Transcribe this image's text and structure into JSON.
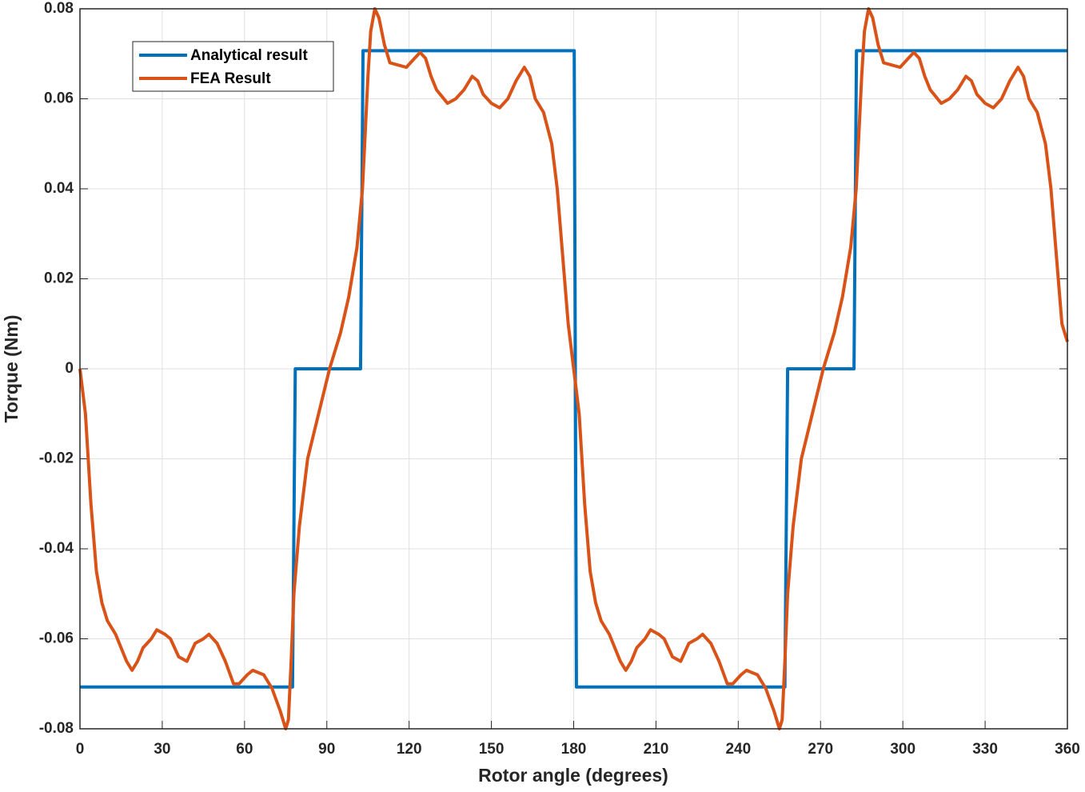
{
  "chart_data": {
    "type": "line",
    "xlabel": "Rotor angle (degrees)",
    "ylabel": "Torque (Nm)",
    "xlim": [
      0,
      360
    ],
    "xticks": [
      0,
      30,
      60,
      90,
      120,
      150,
      180,
      210,
      240,
      270,
      300,
      330,
      360
    ],
    "ylim": [
      -0.08,
      0.08
    ],
    "yticks": [
      -0.08,
      -0.06,
      -0.04,
      -0.02,
      0,
      0.02,
      0.04,
      0.06,
      0.08
    ],
    "grid": true,
    "legend": "upper-left",
    "series": [
      {
        "name": "Analytical result",
        "color": "#0072BD",
        "x": [
          0,
          77.5,
          78.5,
          102.3,
          103.2,
          180.2,
          181,
          257,
          258,
          282.2,
          283.1,
          360
        ],
        "values": [
          -0.0707,
          -0.0707,
          0,
          0,
          0.0707,
          0.0707,
          -0.0707,
          -0.0707,
          0,
          0,
          0.0707,
          0.0707
        ]
      },
      {
        "name": "FEA Result",
        "color": "#D95319",
        "x": [
          0,
          2,
          4,
          6,
          8,
          10,
          13,
          15,
          17,
          19,
          21,
          23,
          26,
          28,
          31,
          33,
          36,
          39,
          42,
          45,
          47,
          50,
          53,
          56,
          58,
          61,
          63,
          67,
          70,
          73,
          75,
          76,
          77,
          78,
          80,
          83,
          87,
          91,
          95,
          98,
          101,
          103,
          105,
          106,
          107.5,
          109,
          111,
          113,
          116,
          119,
          122,
          124,
          126,
          128,
          130,
          132,
          134,
          137,
          140,
          143,
          145,
          147,
          150,
          153,
          156,
          159,
          162,
          164,
          166,
          169,
          172,
          174,
          176,
          178,
          180,
          182,
          184,
          186,
          188,
          190,
          193,
          195,
          197,
          199,
          201,
          203,
          206,
          208,
          211,
          213,
          216,
          219,
          222,
          225,
          227,
          230,
          233,
          236,
          238,
          241,
          243,
          247,
          250,
          253,
          255,
          256,
          257,
          258,
          260,
          263,
          267,
          271,
          275,
          278,
          281,
          283,
          285,
          286,
          287.5,
          289,
          291,
          293,
          296,
          299,
          302,
          304,
          306,
          308,
          310,
          312,
          314,
          317,
          320,
          323,
          325,
          327,
          330,
          333,
          336,
          339,
          342,
          344,
          346,
          349,
          352,
          354,
          356,
          358,
          360
        ],
        "values": [
          0,
          -0.01,
          -0.03,
          -0.045,
          -0.052,
          -0.056,
          -0.059,
          -0.062,
          -0.065,
          -0.067,
          -0.065,
          -0.062,
          -0.06,
          -0.058,
          -0.059,
          -0.06,
          -0.064,
          -0.065,
          -0.061,
          -0.06,
          -0.059,
          -0.061,
          -0.065,
          -0.07,
          -0.07,
          -0.068,
          -0.067,
          -0.068,
          -0.071,
          -0.076,
          -0.08,
          -0.078,
          -0.065,
          -0.05,
          -0.035,
          -0.02,
          -0.01,
          0,
          0.008,
          0.016,
          0.027,
          0.04,
          0.065,
          0.075,
          0.08,
          0.078,
          0.072,
          0.068,
          0.0675,
          0.067,
          0.069,
          0.0703,
          0.069,
          0.065,
          0.062,
          0.0605,
          0.059,
          0.06,
          0.062,
          0.065,
          0.064,
          0.061,
          0.059,
          0.058,
          0.06,
          0.064,
          0.067,
          0.065,
          0.06,
          0.057,
          0.05,
          0.04,
          0.025,
          0.01,
          0,
          -0.01,
          -0.03,
          -0.045,
          -0.052,
          -0.056,
          -0.059,
          -0.062,
          -0.065,
          -0.067,
          -0.065,
          -0.062,
          -0.06,
          -0.058,
          -0.059,
          -0.06,
          -0.064,
          -0.065,
          -0.061,
          -0.06,
          -0.059,
          -0.061,
          -0.065,
          -0.07,
          -0.07,
          -0.068,
          -0.067,
          -0.068,
          -0.071,
          -0.076,
          -0.08,
          -0.078,
          -0.065,
          -0.05,
          -0.035,
          -0.02,
          -0.01,
          0,
          0.008,
          0.016,
          0.027,
          0.04,
          0.065,
          0.075,
          0.08,
          0.078,
          0.072,
          0.068,
          0.0675,
          0.067,
          0.069,
          0.0703,
          0.069,
          0.065,
          0.062,
          0.0605,
          0.059,
          0.06,
          0.062,
          0.065,
          0.064,
          0.061,
          0.059,
          0.058,
          0.06,
          0.064,
          0.067,
          0.065,
          0.06,
          0.057,
          0.05,
          0.04,
          0.025,
          0.01,
          0.006
        ]
      }
    ]
  }
}
